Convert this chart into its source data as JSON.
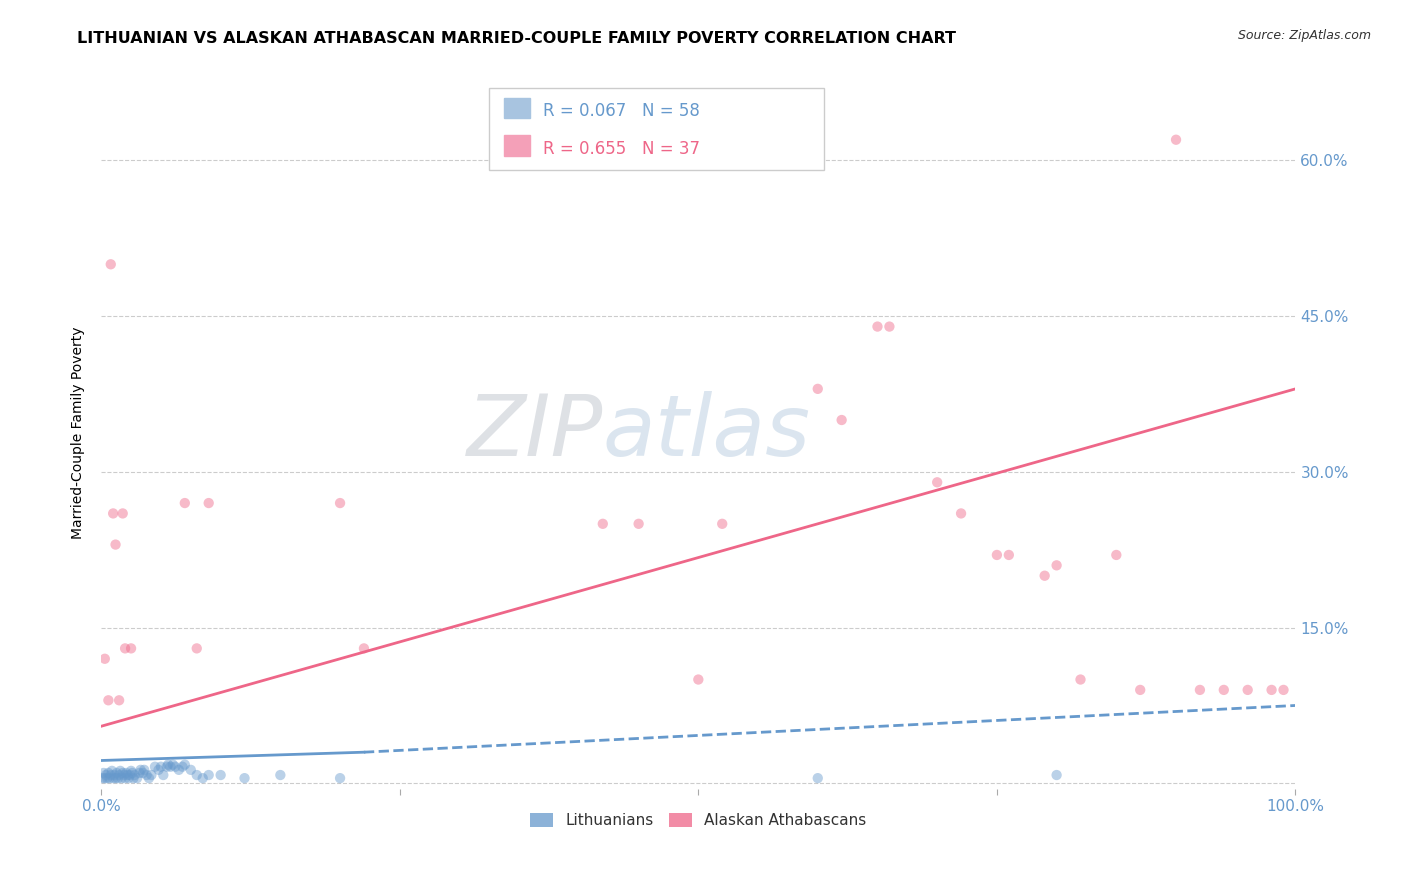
{
  "title": "LITHUANIAN VS ALASKAN ATHABASCAN MARRIED-COUPLE FAMILY POVERTY CORRELATION CHART",
  "source": "Source: ZipAtlas.com",
  "ylabel": "Married-Couple Family Poverty",
  "xlim": [
    0.0,
    1.0
  ],
  "ylim": [
    -0.005,
    0.68
  ],
  "xticks": [
    0.0,
    0.25,
    0.5,
    0.75,
    1.0
  ],
  "xtick_labels": [
    "0.0%",
    "",
    "",
    "",
    "100.0%"
  ],
  "yticks": [
    0.0,
    0.15,
    0.3,
    0.45,
    0.6
  ],
  "ytick_labels": [
    "",
    "15.0%",
    "30.0%",
    "45.0%",
    "60.0%"
  ],
  "blue_scatter": [
    [
      0.001,
      0.005
    ],
    [
      0.002,
      0.01
    ],
    [
      0.003,
      0.005
    ],
    [
      0.004,
      0.008
    ],
    [
      0.005,
      0.005
    ],
    [
      0.006,
      0.01
    ],
    [
      0.007,
      0.005
    ],
    [
      0.008,
      0.008
    ],
    [
      0.009,
      0.012
    ],
    [
      0.01,
      0.005
    ],
    [
      0.011,
      0.008
    ],
    [
      0.012,
      0.005
    ],
    [
      0.013,
      0.01
    ],
    [
      0.014,
      0.005
    ],
    [
      0.015,
      0.008
    ],
    [
      0.016,
      0.012
    ],
    [
      0.017,
      0.005
    ],
    [
      0.018,
      0.01
    ],
    [
      0.019,
      0.008
    ],
    [
      0.02,
      0.005
    ],
    [
      0.021,
      0.01
    ],
    [
      0.022,
      0.008
    ],
    [
      0.023,
      0.005
    ],
    [
      0.024,
      0.008
    ],
    [
      0.025,
      0.012
    ],
    [
      0.026,
      0.01
    ],
    [
      0.027,
      0.005
    ],
    [
      0.028,
      0.008
    ],
    [
      0.03,
      0.005
    ],
    [
      0.032,
      0.01
    ],
    [
      0.033,
      0.013
    ],
    [
      0.035,
      0.01
    ],
    [
      0.036,
      0.013
    ],
    [
      0.038,
      0.008
    ],
    [
      0.04,
      0.005
    ],
    [
      0.042,
      0.008
    ],
    [
      0.045,
      0.016
    ],
    [
      0.048,
      0.013
    ],
    [
      0.05,
      0.016
    ],
    [
      0.052,
      0.008
    ],
    [
      0.055,
      0.016
    ],
    [
      0.056,
      0.018
    ],
    [
      0.058,
      0.016
    ],
    [
      0.06,
      0.018
    ],
    [
      0.062,
      0.016
    ],
    [
      0.065,
      0.013
    ],
    [
      0.068,
      0.016
    ],
    [
      0.07,
      0.018
    ],
    [
      0.075,
      0.013
    ],
    [
      0.08,
      0.008
    ],
    [
      0.085,
      0.005
    ],
    [
      0.09,
      0.008
    ],
    [
      0.1,
      0.008
    ],
    [
      0.12,
      0.005
    ],
    [
      0.15,
      0.008
    ],
    [
      0.2,
      0.005
    ],
    [
      0.6,
      0.005
    ],
    [
      0.8,
      0.008
    ]
  ],
  "pink_scatter": [
    [
      0.003,
      0.12
    ],
    [
      0.006,
      0.08
    ],
    [
      0.008,
      0.5
    ],
    [
      0.01,
      0.26
    ],
    [
      0.012,
      0.23
    ],
    [
      0.015,
      0.08
    ],
    [
      0.018,
      0.26
    ],
    [
      0.02,
      0.13
    ],
    [
      0.025,
      0.13
    ],
    [
      0.07,
      0.27
    ],
    [
      0.08,
      0.13
    ],
    [
      0.09,
      0.27
    ],
    [
      0.2,
      0.27
    ],
    [
      0.22,
      0.13
    ],
    [
      0.42,
      0.25
    ],
    [
      0.45,
      0.25
    ],
    [
      0.5,
      0.1
    ],
    [
      0.52,
      0.25
    ],
    [
      0.6,
      0.38
    ],
    [
      0.62,
      0.35
    ],
    [
      0.65,
      0.44
    ],
    [
      0.66,
      0.44
    ],
    [
      0.7,
      0.29
    ],
    [
      0.72,
      0.26
    ],
    [
      0.75,
      0.22
    ],
    [
      0.76,
      0.22
    ],
    [
      0.79,
      0.2
    ],
    [
      0.8,
      0.21
    ],
    [
      0.82,
      0.1
    ],
    [
      0.85,
      0.22
    ],
    [
      0.87,
      0.09
    ],
    [
      0.9,
      0.62
    ],
    [
      0.92,
      0.09
    ],
    [
      0.94,
      0.09
    ],
    [
      0.96,
      0.09
    ],
    [
      0.98,
      0.09
    ],
    [
      0.99,
      0.09
    ]
  ],
  "blue_line_solid": {
    "x": [
      0.0,
      0.22
    ],
    "y": [
      0.022,
      0.03
    ]
  },
  "blue_line_dashed": {
    "x": [
      0.22,
      1.0
    ],
    "y": [
      0.03,
      0.075
    ]
  },
  "pink_line": {
    "x": [
      0.0,
      1.0
    ],
    "y": [
      0.055,
      0.38
    ]
  },
  "blue_color": "#6699cc",
  "pink_color": "#ee6688",
  "background_color": "#ffffff",
  "grid_color": "#cccccc",
  "title_fontsize": 11.5,
  "axis_label_fontsize": 10,
  "tick_fontsize": 11,
  "legend_fontsize": 12,
  "scatter_size": 55,
  "scatter_alpha": 0.45
}
